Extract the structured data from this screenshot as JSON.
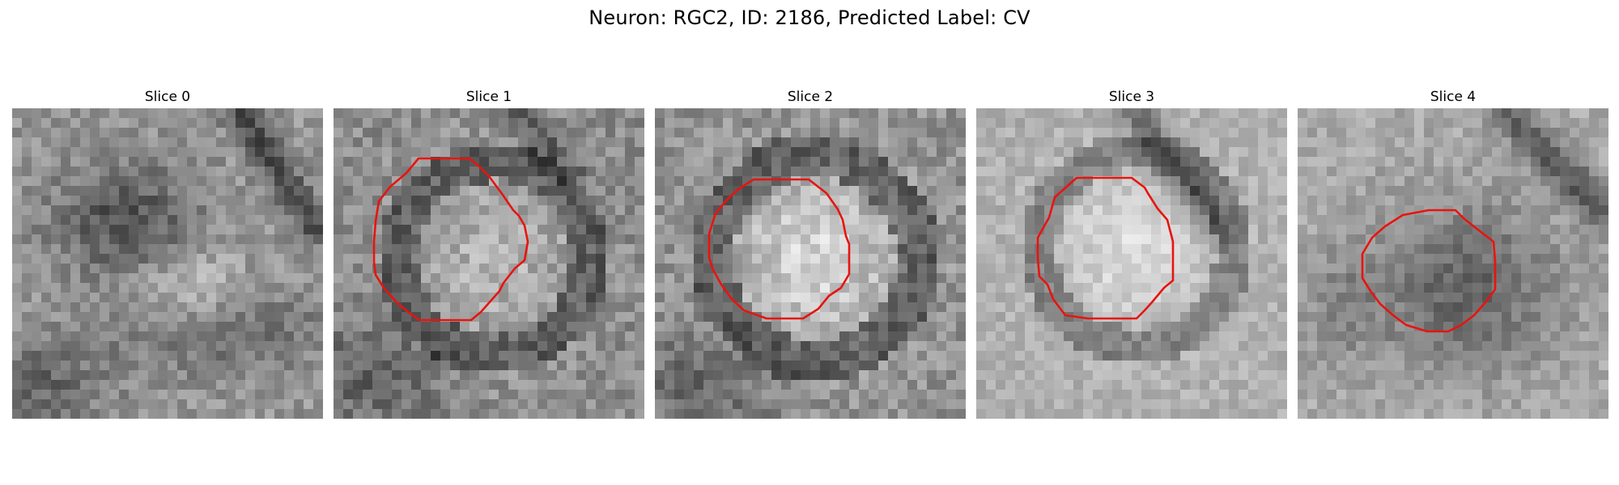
{
  "figure": {
    "title": "Neuron: RGC2, ID: 2186, Predicted Label: CV",
    "slices": [
      {
        "title": "Slice 0",
        "has_contour": false
      },
      {
        "title": "Slice 1",
        "has_contour": true
      },
      {
        "title": "Slice 2",
        "has_contour": true
      },
      {
        "title": "Slice 3",
        "has_contour": true
      },
      {
        "title": "Slice 4",
        "has_contour": true
      }
    ],
    "contour_color": "#e8140f",
    "colormap": "grayscale"
  }
}
